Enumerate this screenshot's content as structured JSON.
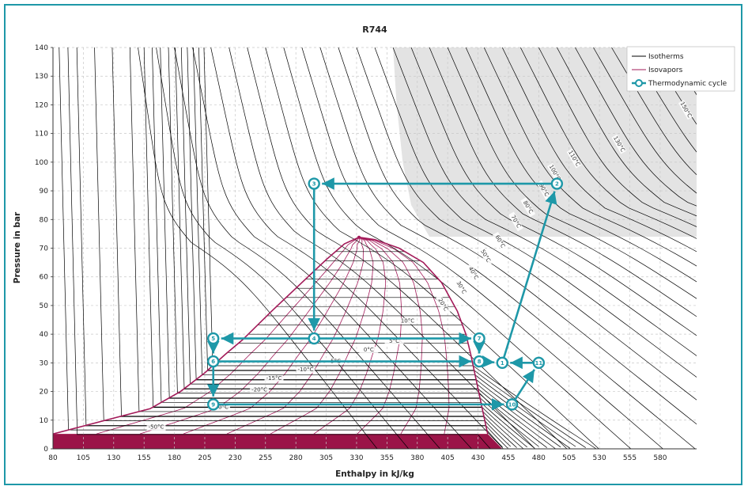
{
  "chart_data": {
    "type": "line",
    "title": "R744",
    "xlabel": "Enthalpy in kJ/kg",
    "ylabel": "Pressure in bar",
    "xlim": [
      80,
      610
    ],
    "ylim": [
      0,
      140
    ],
    "x_ticks": [
      "80",
      "105",
      "130",
      "155",
      "180",
      "205",
      "230",
      "255",
      "280",
      "305",
      "330",
      "355",
      "380",
      "405",
      "430",
      "455",
      "480",
      "505",
      "530",
      "555",
      "580"
    ],
    "y_ticks": [
      "0",
      "10",
      "20",
      "30",
      "40",
      "50",
      "60",
      "70",
      "80",
      "90",
      "100",
      "110",
      "120",
      "130",
      "140"
    ],
    "grid": true,
    "legend_position": "top-right",
    "legend": [
      {
        "name": "Isotherms",
        "color": "#000000",
        "marker": false
      },
      {
        "name": "Isovapors",
        "color": "#a31a59",
        "marker": false
      },
      {
        "name": "Thermodynamic cycle",
        "color": "#1e98a8",
        "marker": true
      }
    ],
    "colors": {
      "isotherm": "#000000",
      "isovapor": "#a31a59",
      "cycle": "#1e98a8",
      "supercritical": "#e3e3e3",
      "solid": "#9b1448"
    },
    "critical_point": {
      "h": 332,
      "p": 73.8
    },
    "saturation_dome": {
      "liquid": [
        [
          80,
          5.2
        ],
        [
          160,
          14
        ],
        [
          185,
          20
        ],
        [
          205,
          26.5
        ],
        [
          222,
          33
        ],
        [
          236,
          38
        ],
        [
          260,
          48
        ],
        [
          285,
          58
        ],
        [
          305,
          66
        ],
        [
          320,
          71.5
        ],
        [
          332,
          73.8
        ]
      ],
      "vapor": [
        [
          332,
          73.8
        ],
        [
          345,
          73
        ],
        [
          365,
          70
        ],
        [
          385,
          65
        ],
        [
          400,
          58
        ],
        [
          413,
          48
        ],
        [
          420,
          40
        ],
        [
          424,
          33
        ],
        [
          428,
          25
        ],
        [
          432,
          17
        ],
        [
          436,
          9
        ],
        [
          438,
          5.2
        ]
      ]
    },
    "isotherm_labels": [
      "150°C",
      "130°C",
      "110°C",
      "100°C",
      "90°C",
      "80°C",
      "70°C",
      "60°C",
      "50°C",
      "40°C",
      "30°C",
      "20°C",
      "10°C",
      "5°C",
      "0°C",
      "-5°C",
      "-10°C",
      "-15°C",
      "-20°C",
      "-30°C",
      "-50°C"
    ],
    "cycle": {
      "name": "Thermodynamic cycle",
      "points": [
        {
          "id": "1",
          "h": 450,
          "p": 30
        },
        {
          "id": "2",
          "h": 495,
          "p": 92.5
        },
        {
          "id": "3",
          "h": 295,
          "p": 92.5
        },
        {
          "id": "4",
          "h": 295,
          "p": 38.5
        },
        {
          "id": "5",
          "h": 212,
          "p": 38.5
        },
        {
          "id": "6",
          "h": 212,
          "p": 30.5
        },
        {
          "id": "7",
          "h": 431,
          "p": 38.5
        },
        {
          "id": "8",
          "h": 431,
          "p": 30.5
        },
        {
          "id": "9",
          "h": 212,
          "p": 15.5
        },
        {
          "id": "10",
          "h": 458,
          "p": 15.5
        },
        {
          "id": "11",
          "h": 480,
          "p": 30
        }
      ],
      "edges": [
        [
          "1",
          "2"
        ],
        [
          "2",
          "3"
        ],
        [
          "3",
          "4"
        ],
        [
          "4",
          "5"
        ],
        [
          "5",
          "6"
        ],
        [
          "4",
          "7"
        ],
        [
          "7",
          "8"
        ],
        [
          "8",
          "1"
        ],
        [
          "6",
          "8"
        ],
        [
          "6",
          "9"
        ],
        [
          "9",
          "10"
        ],
        [
          "10",
          "11"
        ],
        [
          "11",
          "1"
        ]
      ]
    }
  }
}
